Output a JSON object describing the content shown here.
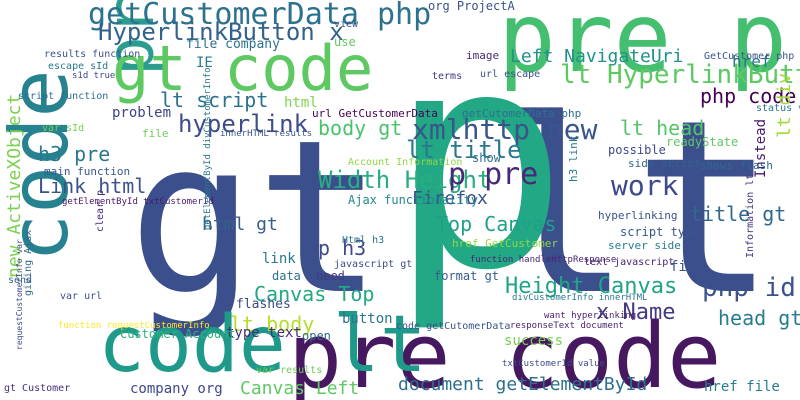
{
  "words": [
    {
      "text": "gt",
      "color": "#3b4f8c"
    },
    {
      "text": "lt",
      "color": "#3b4f8c"
    },
    {
      "text": "p",
      "color": "#22a884"
    },
    {
      "text": "pre p",
      "color": "#44bf70"
    },
    {
      "text": "pre code",
      "color": "#46185f"
    },
    {
      "text": "code lt",
      "color": "#1f9a8a"
    },
    {
      "text": "code",
      "color": "#26828e"
    },
    {
      "text": "pre",
      "color": "#2a9d8f"
    },
    {
      "text": "gt code",
      "color": "#5ec962"
    },
    {
      "text": "getCustomerData php",
      "color": "#2c728e"
    },
    {
      "text": "HyperlinkButton x",
      "color": "#33628d"
    },
    {
      "text": "lt HyperlinkButton",
      "color": "#5ec962"
    },
    {
      "text": "xmlhttp new",
      "color": "#3a548c"
    },
    {
      "text": "Width Height",
      "color": "#28ae80"
    },
    {
      "text": "php code",
      "color": "#440154"
    },
    {
      "text": "lt script",
      "color": "#2c728e"
    },
    {
      "text": "hyperlink",
      "color": "#3e4c8a"
    },
    {
      "text": "lt title",
      "color": "#2a788e"
    },
    {
      "text": "body gt",
      "color": "#4ac16d"
    },
    {
      "text": "Left NavigateUri",
      "color": "#21918c"
    },
    {
      "text": "p pre",
      "color": "#482878"
    },
    {
      "text": "Height Canvas",
      "color": "#20a386"
    },
    {
      "text": "Canvas Top",
      "color": "#22a884"
    },
    {
      "text": "php id",
      "color": "#3b528b"
    },
    {
      "text": "x Name",
      "color": "#443983"
    },
    {
      "text": "head gt",
      "color": "#287c8e"
    },
    {
      "text": "document getElementById",
      "color": "#2d708e"
    },
    {
      "text": "lt body",
      "color": "#b5de2b"
    },
    {
      "text": "Canvas Left",
      "color": "#5ec962"
    },
    {
      "text": "title gt",
      "color": "#31688e"
    },
    {
      "text": "Top Canvas",
      "color": "#1fa088"
    },
    {
      "text": "work",
      "color": "#3e4a89"
    },
    {
      "text": "lt head",
      "color": "#54c568"
    },
    {
      "text": "Link html",
      "color": "#3b528b"
    },
    {
      "text": "h3 pre",
      "color": "#2a788e"
    },
    {
      "text": "new ActiveXObject",
      "color": "#7ad151"
    },
    {
      "text": "p h3",
      "color": "#3e4989"
    },
    {
      "text": "html gt",
      "color": "#355f8d"
    },
    {
      "text": "Firefox",
      "color": "#3c508b"
    },
    {
      "text": "Instead",
      "color": "#48186a"
    },
    {
      "text": "lt div",
      "color": "#a0da39"
    },
    {
      "text": "href",
      "color": "#2a788e"
    },
    {
      "text": "org ProjectA",
      "color": "#3b518b"
    },
    {
      "text": "file company",
      "color": "#2c728e"
    },
    {
      "text": "IE",
      "color": "#297a8e"
    },
    {
      "text": "html",
      "color": "#7fd34e"
    },
    {
      "text": "problem",
      "color": "#404387"
    },
    {
      "text": "type text",
      "color": "#472d7b"
    },
    {
      "text": "company org",
      "color": "#3f4788"
    },
    {
      "text": "Customer Account",
      "color": "#2db27d"
    },
    {
      "text": "success",
      "color": "#7ad151"
    },
    {
      "text": "open",
      "color": "#31668e"
    },
    {
      "text": "button",
      "color": "#2c738e"
    },
    {
      "text": "flashes",
      "color": "#3e4a89"
    },
    {
      "text": "link",
      "color": "#2a788e"
    },
    {
      "text": "data",
      "color": "#2c738e"
    },
    {
      "text": "need",
      "color": "#453882"
    },
    {
      "text": "format gt",
      "color": "#365c8d"
    },
    {
      "text": "fine",
      "color": "#3b528b"
    },
    {
      "text": "href file",
      "color": "#287d8e"
    },
    {
      "text": "href GetCustomer",
      "color": "#8fd744"
    },
    {
      "text": "server side",
      "color": "#297b8e"
    },
    {
      "text": "show",
      "color": "#2e6f8e"
    },
    {
      "text": "Ajax functionality",
      "color": "#24868e"
    },
    {
      "text": "Account Information",
      "color": "#8fd744"
    },
    {
      "text": "script type",
      "color": "#39568c"
    },
    {
      "text": "side script",
      "color": "#33638d"
    },
    {
      "text": "possible",
      "color": "#3e4a89"
    },
    {
      "text": "shows flash",
      "color": "#31688e"
    },
    {
      "text": "readyState",
      "color": "#5ec962"
    },
    {
      "text": "status var",
      "color": "#2a768e"
    },
    {
      "text": "GetCustomer php",
      "color": "#3a538b"
    },
    {
      "text": "main function",
      "color": "#38598c"
    },
    {
      "text": "script function",
      "color": "#2e6e8e"
    },
    {
      "text": "var sId",
      "color": "#7ad151"
    },
    {
      "text": "s1d true",
      "color": "#3f4889"
    },
    {
      "text": "escape sId",
      "color": "#2a788e"
    },
    {
      "text": "results function",
      "color": "#3a548c"
    },
    {
      "text": "use",
      "color": "#5ec962"
    },
    {
      "text": "image",
      "color": "#472c7a"
    },
    {
      "text": "terms",
      "color": "#453581"
    },
    {
      "text": "url escape",
      "color": "#3b518b"
    },
    {
      "text": "file",
      "color": "#6ece58"
    },
    {
      "text": "url GetCustomerData",
      "color": "#440154"
    },
    {
      "text": "getCutomerData php",
      "color": "#2d708e"
    },
    {
      "text": "h3 link",
      "color": "#2a788e"
    },
    {
      "text": "hyperlinking p",
      "color": "#3b528b"
    },
    {
      "text": "text javascript",
      "color": "#482475"
    },
    {
      "text": "javascript gt",
      "color": "#3e4a89"
    },
    {
      "text": "Html h3",
      "color": "#2c728e"
    },
    {
      "text": "clear p",
      "color": "#482878"
    },
    {
      "text": "var url",
      "color": "#3b528b"
    },
    {
      "text": "giving Ajax",
      "color": "#31688e"
    },
    {
      "text": "send",
      "color": "#355f8d"
    },
    {
      "text": "gt Customer",
      "color": "#46327e"
    },
    {
      "text": "var results",
      "color": "#6ece58"
    },
    {
      "text": "code getCutomerData",
      "color": "#3b528b"
    },
    {
      "text": "responseText document",
      "color": "#482475"
    },
    {
      "text": "want hyperlinking",
      "color": "#481f70"
    },
    {
      "text": "txtCustomerId value",
      "color": "#3e4989"
    },
    {
      "text": "divCustomerInfo innerHTML",
      "color": "#2a788e"
    },
    {
      "text": "function handleHttpResponse",
      "color": "#482475"
    },
    {
      "text": "function requestCustomerInfo",
      "color": "#fde725"
    },
    {
      "text": "requestCustomerInfo var",
      "color": "#3e4a89"
    },
    {
      "text": "getElementById txtCustomerId",
      "color": "#48186a"
    },
    {
      "text": "getElementById divCustomerInfo",
      "color": "#2a788e"
    },
    {
      "text": "innerHTML results",
      "color": "#3b528b"
    },
    {
      "text": "Information lt",
      "color": "#46327e"
    },
    {
      "text": "view",
      "color": "#3b528b"
    }
  ]
}
